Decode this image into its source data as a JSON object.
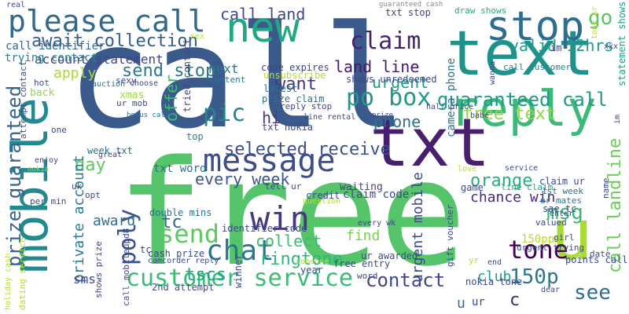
{
  "wordcloud": {
    "words": [
      {
        "id": "call",
        "text": "call",
        "color": "#3b5a8c"
      },
      {
        "id": "free",
        "text": "free",
        "color": "#55c46a"
      },
      {
        "id": "text",
        "text": "text",
        "color": "#20928c"
      },
      {
        "id": "txt",
        "text": "txt",
        "color": "#471f6e"
      },
      {
        "id": "mobile",
        "text": "mobile",
        "color": "#23898e"
      },
      {
        "id": "u",
        "text": "u",
        "color": "#a8db34"
      },
      {
        "id": "reply",
        "text": "reply",
        "color": "#3aba76"
      },
      {
        "id": "stop",
        "text": "stop",
        "color": "#2d6e8e"
      },
      {
        "id": "new",
        "text": "new",
        "color": "#22a784"
      },
      {
        "id": "please_call",
        "text": "please call",
        "color": "#31688e"
      },
      {
        "id": "message",
        "text": "message",
        "color": "#3e4c8a"
      },
      {
        "id": "customer_service",
        "text": "customer service",
        "color": "#3bbb75"
      },
      {
        "id": "chat",
        "text": "chat",
        "color": "#2a768e"
      },
      {
        "id": "win",
        "text": "win",
        "color": "#453781"
      },
      {
        "id": "claim",
        "text": "claim",
        "color": "#482173"
      },
      {
        "id": "po_box",
        "text": "po box",
        "color": "#22978a"
      },
      {
        "id": "tone",
        "text": "tone",
        "color": "#440154"
      },
      {
        "id": "send",
        "text": "send",
        "color": "#5ec962"
      },
      {
        "id": "guaranteed_call",
        "text": "guaranteed call",
        "color": "#1f9a8a"
      },
      {
        "id": "free_text",
        "text": "free text",
        "color": "#8fd744"
      },
      {
        "id": "150p",
        "text": "150p",
        "color": "#2b758e"
      },
      {
        "id": "contact",
        "text": "contact",
        "color": "#3f4889"
      },
      {
        "id": "poly",
        "text": "poly",
        "color": "#3b518b"
      },
      {
        "id": "pic",
        "text": "pic",
        "color": "#25858e"
      },
      {
        "id": "prize_guaranteed",
        "text": "prize guaranteed",
        "color": "#33638d"
      },
      {
        "id": "await_collection",
        "text": "await collection",
        "color": "#365c8d"
      },
      {
        "id": "selected_receive",
        "text": "selected receive",
        "color": "#3d4d8a"
      },
      {
        "id": "every_week",
        "text": "every week",
        "color": "#39568c"
      },
      {
        "id": "call_landline",
        "text": "call landline",
        "color": "#6ccd5a"
      },
      {
        "id": "orange",
        "text": "orange",
        "color": "#29af7f"
      },
      {
        "id": "chance_win",
        "text": "chance win",
        "color": "#472c7a"
      },
      {
        "id": "phone",
        "text": "phone",
        "color": "#2c718e"
      },
      {
        "id": "ringtone",
        "text": "ringtone",
        "color": "#31b57b"
      },
      {
        "id": "collect",
        "text": "collect",
        "color": "#3cbb75"
      },
      {
        "id": "tc_big",
        "text": "tc",
        "color": "#33638d"
      },
      {
        "id": "msg",
        "text": "msg",
        "color": "#35b779"
      },
      {
        "id": "see",
        "text": "see",
        "color": "#2e6d8e"
      },
      {
        "id": "go",
        "text": "go",
        "color": "#56c667"
      },
      {
        "id": "valid_12hrs",
        "text": "valid 12hrs",
        "color": "#1f988b"
      },
      {
        "id": "urgent",
        "text": "urgent",
        "color": "#1e9c89"
      },
      {
        "id": "want",
        "text": "want",
        "color": "#463480"
      },
      {
        "id": "land_line",
        "text": "land line",
        "color": "#48186a"
      },
      {
        "id": "call_land",
        "text": "call land",
        "color": "#3e4a89"
      },
      {
        "id": "day",
        "text": "day",
        "color": "#5ec962"
      },
      {
        "id": "send_stop",
        "text": "send stop",
        "color": "#2a788e"
      },
      {
        "id": "tscs",
        "text": "tscs",
        "color": "#20a386"
      },
      {
        "id": "offer",
        "text": "offer",
        "color": "#3dbc74"
      },
      {
        "id": "award",
        "text": "award",
        "color": "#2e6e8e"
      },
      {
        "id": "private_account",
        "text": "private account",
        "color": "#287c8e"
      },
      {
        "id": "apply",
        "text": "apply",
        "color": "#a5db36"
      },
      {
        "id": "account_statement",
        "text": "account statement",
        "color": "#3f4788"
      },
      {
        "id": "call_identifier",
        "text": "call identifier",
        "color": "#31688e"
      },
      {
        "id": "trying_contact",
        "text": "trying contact",
        "color": "#25838e"
      },
      {
        "id": "next",
        "text": "next",
        "color": "#2b748e"
      },
      {
        "id": "club",
        "text": "club",
        "color": "#1f9e89"
      },
      {
        "id": "find",
        "text": "find",
        "color": "#7ad151"
      },
      {
        "id": "urgent_mobile",
        "text": "urgent mobile",
        "color": "#3f4889"
      },
      {
        "id": "claim_code",
        "text": "claim code",
        "color": "#404688"
      },
      {
        "id": "txt_word",
        "text": "txt word",
        "color": "#2c718e"
      },
      {
        "id": "c_big",
        "text": "c",
        "color": "#482878"
      },
      {
        "id": "u_bottom",
        "text": "u",
        "color": "#2c728e"
      },
      {
        "id": "sms",
        "text": "sms",
        "color": "#3f4788"
      },
      {
        "id": "hi",
        "text": "hi",
        "color": "#453781"
      },
      {
        "id": "code_expires",
        "text": "code expires",
        "color": "#414487"
      },
      {
        "id": "unsubscribe",
        "text": "unsubscribe",
        "color": "#b5de2b"
      },
      {
        "id": "shows_unredeemed",
        "text": "shows unredeemed",
        "color": "#3f4788"
      },
      {
        "id": "prize_claim",
        "text": "prize claim",
        "color": "#2c728e"
      },
      {
        "id": "latest",
        "text": "latest",
        "color": "#2f6c8e"
      },
      {
        "id": "draw_shows",
        "text": "draw shows",
        "color": "#22a884"
      },
      {
        "id": "txt_stop",
        "text": "txt stop",
        "color": "#414487"
      },
      {
        "id": "guaranteed_cash",
        "text": "guaranteed cash",
        "color": "#8c8c8c"
      },
      {
        "id": "real",
        "text": "real",
        "color": "#3f4889"
      },
      {
        "id": "camera_phone",
        "text": "camera phone",
        "color": "#2c718e"
      },
      {
        "id": "call_customer",
        "text": "call customer",
        "color": "#26818e"
      },
      {
        "id": "statement_shows",
        "text": "statement shows",
        "color": "#1fa088"
      },
      {
        "id": "im",
        "text": "im",
        "color": "#3f4889"
      },
      {
        "id": "xxx",
        "text": "xxx",
        "color": "#404688"
      },
      {
        "id": "hot",
        "text": "hot",
        "color": "#3b518b"
      },
      {
        "id": "back",
        "text": "back",
        "color": "#8fd744"
      },
      {
        "id": "xmas",
        "text": "xmas",
        "color": "#a2da37"
      },
      {
        "id": "ur_mob",
        "text": "ur mob",
        "color": "#3e4a89"
      },
      {
        "id": "sexy",
        "text": "sexy",
        "color": "#404688"
      },
      {
        "id": "auction",
        "text": "auction",
        "color": "#2d6f8e"
      },
      {
        "id": "choose",
        "text": "choose",
        "color": "#3f4889"
      },
      {
        "id": "content",
        "text": "content",
        "color": "#2b758e"
      },
      {
        "id": "one",
        "text": "one",
        "color": "#3e4989"
      },
      {
        "id": "week_txt",
        "text": "week txt",
        "color": "#2c728e"
      },
      {
        "id": "top",
        "text": "top",
        "color": "#25858e"
      },
      {
        "id": "txt_nokia",
        "text": "txt nokia",
        "color": "#414487"
      },
      {
        "id": "line_rental",
        "text": "line rental",
        "color": "#3e4989"
      },
      {
        "id": "half_price",
        "text": "half price",
        "color": "#3e4c8a"
      },
      {
        "id": "prize",
        "text": "prize",
        "color": "#3e4989"
      },
      {
        "id": "babe",
        "text": "babe",
        "color": "#3e4a89"
      },
      {
        "id": "bonus_caller",
        "text": "bonus caller",
        "color": "#2c728e"
      },
      {
        "id": "waiting",
        "text": "waiting",
        "color": "#414487"
      },
      {
        "id": "tell_ur",
        "text": "tell ur",
        "color": "#3e4a89"
      },
      {
        "id": "uk",
        "text": "uk",
        "color": "#404688"
      },
      {
        "id": "per_min",
        "text": "per min",
        "color": "#3e4a89"
      },
      {
        "id": "opt",
        "text": "opt",
        "color": "#3e4989"
      },
      {
        "id": "enjoy",
        "text": "enjoy",
        "color": "#3e4989"
      },
      {
        "id": "nokia",
        "text": "nokia",
        "color": "#b5de2b"
      },
      {
        "id": "great",
        "text": "great",
        "color": "#3f4889"
      },
      {
        "id": "credit",
        "text": "credit",
        "color": "#3f4889"
      },
      {
        "id": "question",
        "text": "question",
        "color": "#b5de2b"
      },
      {
        "id": "game",
        "text": "game",
        "color": "#3f4889"
      },
      {
        "id": "line_claim",
        "text": "line claim",
        "color": "#20a386"
      },
      {
        "id": "1st_week",
        "text": "1st week",
        "color": "#2c728e"
      },
      {
        "id": "ur_mates",
        "text": "ur mates",
        "color": "#2c728e"
      },
      {
        "id": "claim_ur",
        "text": "claim ur",
        "color": "#3f4889"
      },
      {
        "id": "sae_tc",
        "text": "sae tc",
        "color": "#3e4a89"
      },
      {
        "id": "every_wk",
        "text": "every wk",
        "color": "#3e4989"
      },
      {
        "id": "double_mins",
        "text": "double mins",
        "color": "#2c728e"
      },
      {
        "id": "holiday_cash",
        "text": "holiday cash",
        "color": "#b5de2b"
      },
      {
        "id": "identifier_code",
        "text": "identifier code",
        "color": "#3e4989"
      },
      {
        "id": "cash_prize",
        "text": "cash prize",
        "color": "#3e4a89"
      },
      {
        "id": "camcorder_reply",
        "text": "camcorder reply",
        "color": "#3e4989"
      },
      {
        "id": "2nd_attempt",
        "text": "2nd attempt",
        "color": "#3e4a89"
      },
      {
        "id": "tc_small",
        "text": "tc",
        "color": "#3e4a89"
      },
      {
        "id": "150ppm",
        "text": "150ppm",
        "color": "#b5de2b"
      },
      {
        "id": "urgent_trying",
        "text": "urgent trying",
        "color": "#3e4989"
      },
      {
        "id": "valued",
        "text": "valued",
        "color": "#3e4a89"
      },
      {
        "id": "ur_awarded",
        "text": "ur awarded",
        "color": "#3e4989"
      },
      {
        "id": "free_entry",
        "text": "free entry",
        "color": "#3e4a89"
      },
      {
        "id": "gift_voucher",
        "text": "gift voucher",
        "color": "#3e4989"
      },
      {
        "id": "winner",
        "text": "winner",
        "color": "#3e4a89"
      },
      {
        "id": "call_mobileupd8",
        "text": "call mobileupd8",
        "color": "#3e4989"
      },
      {
        "id": "shows_prize",
        "text": "shows prize",
        "color": "#3e4a89"
      },
      {
        "id": "dating_service",
        "text": "dating service",
        "color": "#b5de2b"
      },
      {
        "id": "word",
        "text": "word",
        "color": "#3e4989"
      },
      {
        "id": "year",
        "text": "year",
        "color": "#3e4a89"
      },
      {
        "id": "someone",
        "text": "someone",
        "color": "#b5de2b"
      },
      {
        "id": "nokia_tone",
        "text": "nokia tone",
        "color": "#3e4989"
      },
      {
        "id": "points_call",
        "text": "points call",
        "color": "#3e4a89"
      },
      {
        "id": "end",
        "text": "end",
        "color": "#3e4989"
      },
      {
        "id": "yr",
        "text": "yr",
        "color": "#b5de2b"
      },
      {
        "id": "date",
        "text": "date",
        "color": "#3e4a89"
      },
      {
        "id": "girl",
        "text": "girl",
        "color": "#3e4989"
      },
      {
        "id": "dear",
        "text": "dear",
        "color": "#3e4989"
      },
      {
        "id": "enter",
        "text": "enter",
        "color": "#3e4a89"
      },
      {
        "id": "name",
        "text": "name",
        "color": "#3e4989"
      },
      {
        "id": "sex",
        "text": "sex",
        "color": "#b5de2b"
      },
      {
        "id": "im_vertical",
        "text": "im",
        "color": "#3e4a89"
      },
      {
        "id": "wanna",
        "text": "wanna",
        "color": "#3e4989"
      },
      {
        "id": "tone_ur",
        "text": "tone ur",
        "color": "#b5de2b"
      },
      {
        "id": "love",
        "text": "love",
        "color": "#b5de2b"
      },
      {
        "id": "service",
        "text": "service",
        "color": "#3e4989"
      },
      {
        "id": "tried_contact",
        "text": "tried contact",
        "color": "#3e4a89"
      },
      {
        "id": "reply_stop",
        "text": "reply stop",
        "color": "#3e4989"
      },
      {
        "id": "ur_small",
        "text": "ur",
        "color": "#3e4989"
      },
      {
        "id": "attempt_contact",
        "text": "attempt contact",
        "color": "#3e4a89"
      }
    ]
  }
}
